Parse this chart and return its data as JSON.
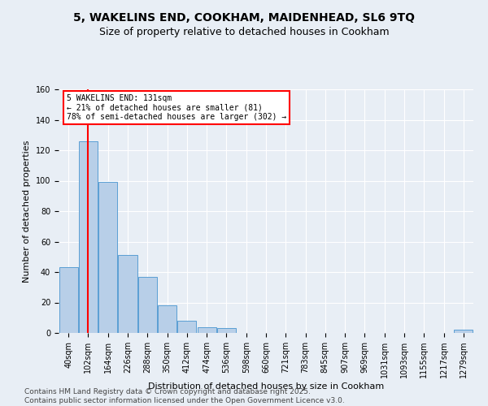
{
  "title": "5, WAKELINS END, COOKHAM, MAIDENHEAD, SL6 9TQ",
  "subtitle": "Size of property relative to detached houses in Cookham",
  "xlabel": "Distribution of detached houses by size in Cookham",
  "ylabel": "Number of detached properties",
  "bar_values": [
    43,
    126,
    99,
    51,
    37,
    18,
    8,
    4,
    3,
    0,
    0,
    0,
    0,
    0,
    0,
    0,
    0,
    0,
    0,
    0,
    2
  ],
  "x_labels": [
    "40sqm",
    "102sqm",
    "164sqm",
    "226sqm",
    "288sqm",
    "350sqm",
    "412sqm",
    "474sqm",
    "536sqm",
    "598sqm",
    "660sqm",
    "721sqm",
    "783sqm",
    "845sqm",
    "907sqm",
    "969sqm",
    "1031sqm",
    "1093sqm",
    "1155sqm",
    "1217sqm",
    "1279sqm"
  ],
  "bar_color": "#b8cfe8",
  "bar_edge_color": "#5a9fd4",
  "vline_color": "red",
  "vline_x": 1,
  "annotation_text": "5 WAKELINS END: 131sqm\n← 21% of detached houses are smaller (81)\n78% of semi-detached houses are larger (302) →",
  "annotation_box_color": "white",
  "annotation_border_color": "red",
  "ylim": [
    0,
    160
  ],
  "yticks": [
    0,
    20,
    40,
    60,
    80,
    100,
    120,
    140,
    160
  ],
  "background_color": "#e8eef5",
  "footer_text": "Contains HM Land Registry data © Crown copyright and database right 2025.\nContains public sector information licensed under the Open Government Licence v3.0.",
  "title_fontsize": 10,
  "subtitle_fontsize": 9,
  "xlabel_fontsize": 8,
  "ylabel_fontsize": 8,
  "tick_fontsize": 7,
  "footer_fontsize": 6.5
}
